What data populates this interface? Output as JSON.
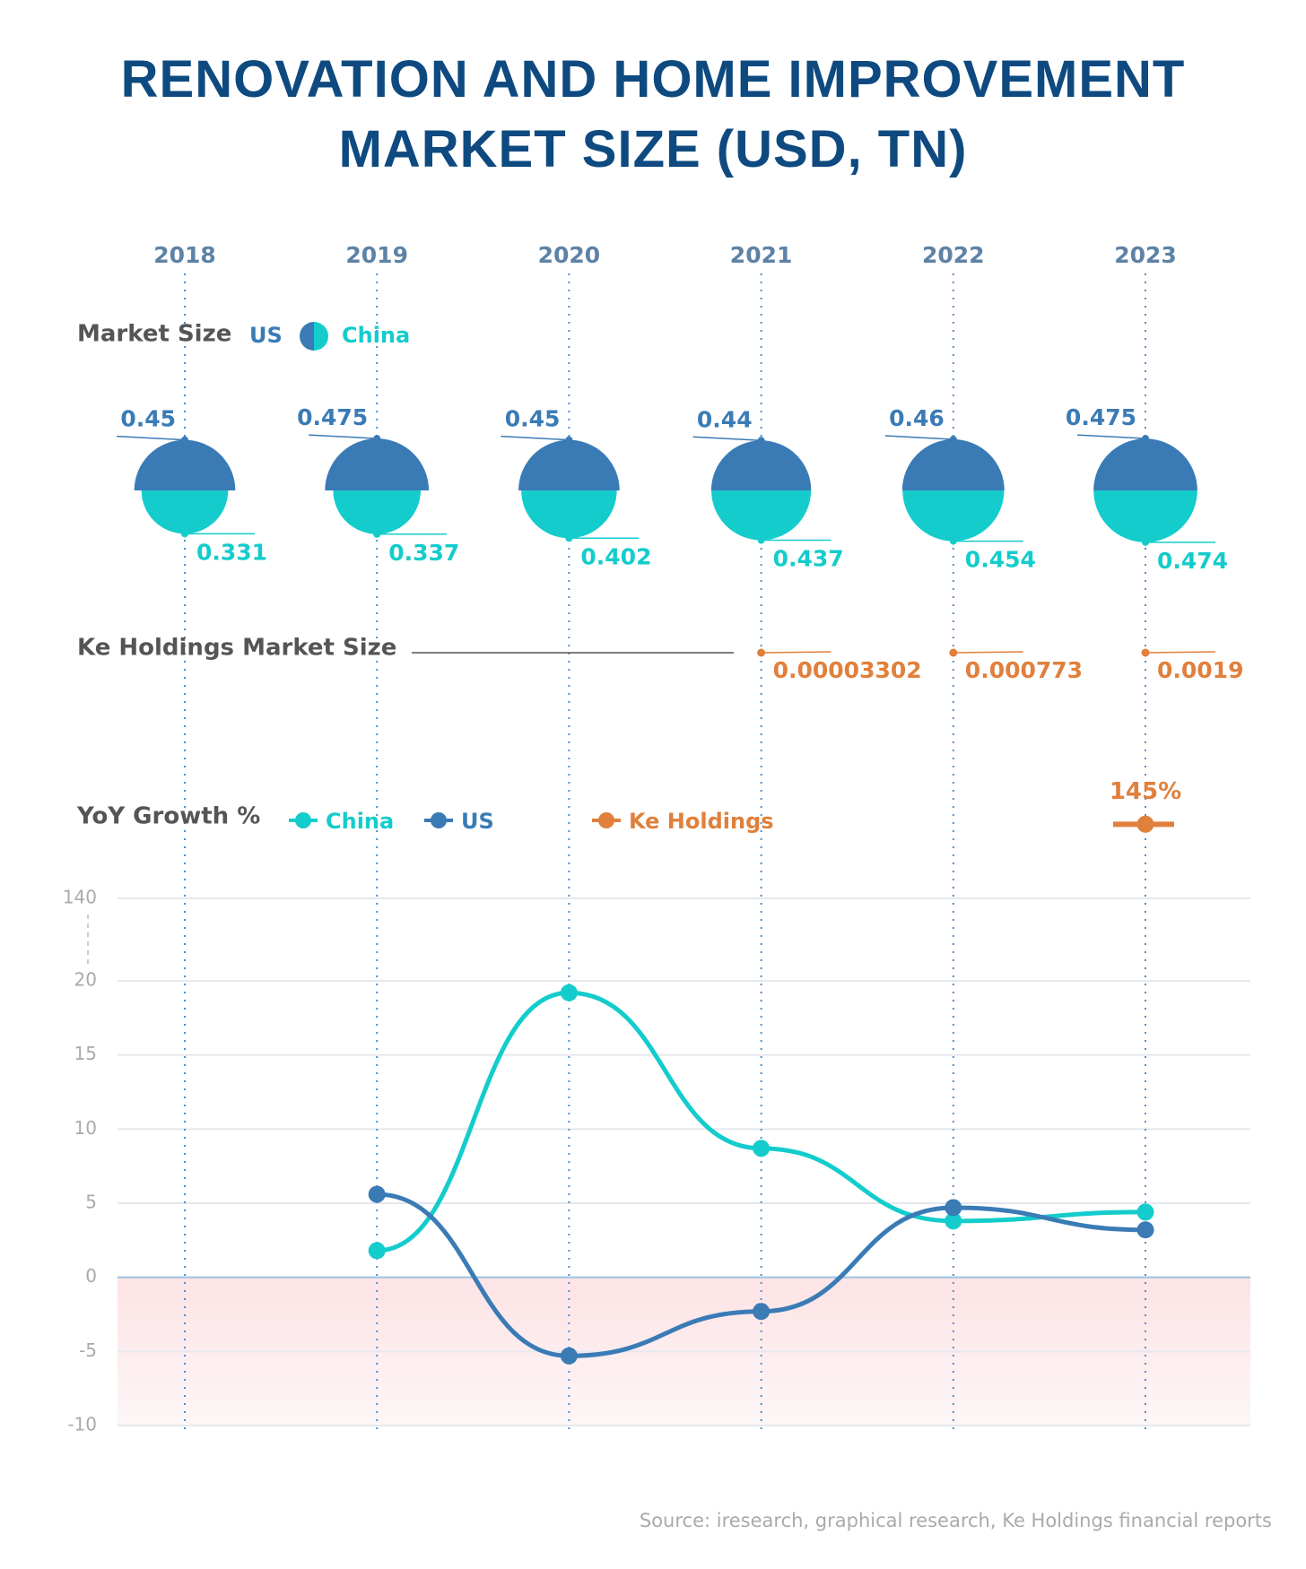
{
  "title": "RENOVATION AND HOME IMPROVEMENT MARKET SIZE (USD, TN)",
  "source": "Source: iresearch, graphical research, Ke Holdings financial reports",
  "chart_data": [
    {
      "type": "semicircle",
      "label": "Market Size",
      "categories": [
        "2018",
        "2019",
        "2020",
        "2021",
        "2022",
        "2023"
      ],
      "series": [
        {
          "name": "US",
          "color": "#3a7bb6",
          "values": [
            0.45,
            0.475,
            0.45,
            0.44,
            0.46,
            0.475
          ]
        },
        {
          "name": "China",
          "color": "#14cccc",
          "values": [
            0.331,
            0.337,
            0.402,
            0.437,
            0.454,
            0.474
          ]
        }
      ]
    },
    {
      "type": "dot",
      "label": "Ke Holdings Market Size",
      "series": [
        {
          "color": "#e0803c",
          "values": [
            null,
            null,
            null,
            3.302e-05,
            0.000773,
            0.0019
          ]
        }
      ]
    },
    {
      "type": "line",
      "label": "YoY Growth %",
      "ylim": [
        -10,
        140
      ],
      "yticks": [
        -10,
        -5,
        0,
        5,
        10,
        15,
        20,
        140
      ],
      "axis_break": [
        20,
        140
      ],
      "grid": true,
      "series": [
        {
          "name": "China",
          "color": "#14cccc",
          "values": [
            null,
            1.8,
            19.2,
            8.7,
            3.8,
            4.4
          ]
        },
        {
          "name": "US",
          "color": "#3a7bb6",
          "values": [
            null,
            5.6,
            -5.3,
            -2.3,
            4.7,
            3.2
          ]
        },
        {
          "name": "Ke Holdings",
          "color": "#e0803c",
          "values": [
            null,
            null,
            null,
            null,
            null,
            145
          ],
          "value_labels": [
            null,
            null,
            null,
            null,
            null,
            "145%"
          ]
        }
      ]
    }
  ]
}
